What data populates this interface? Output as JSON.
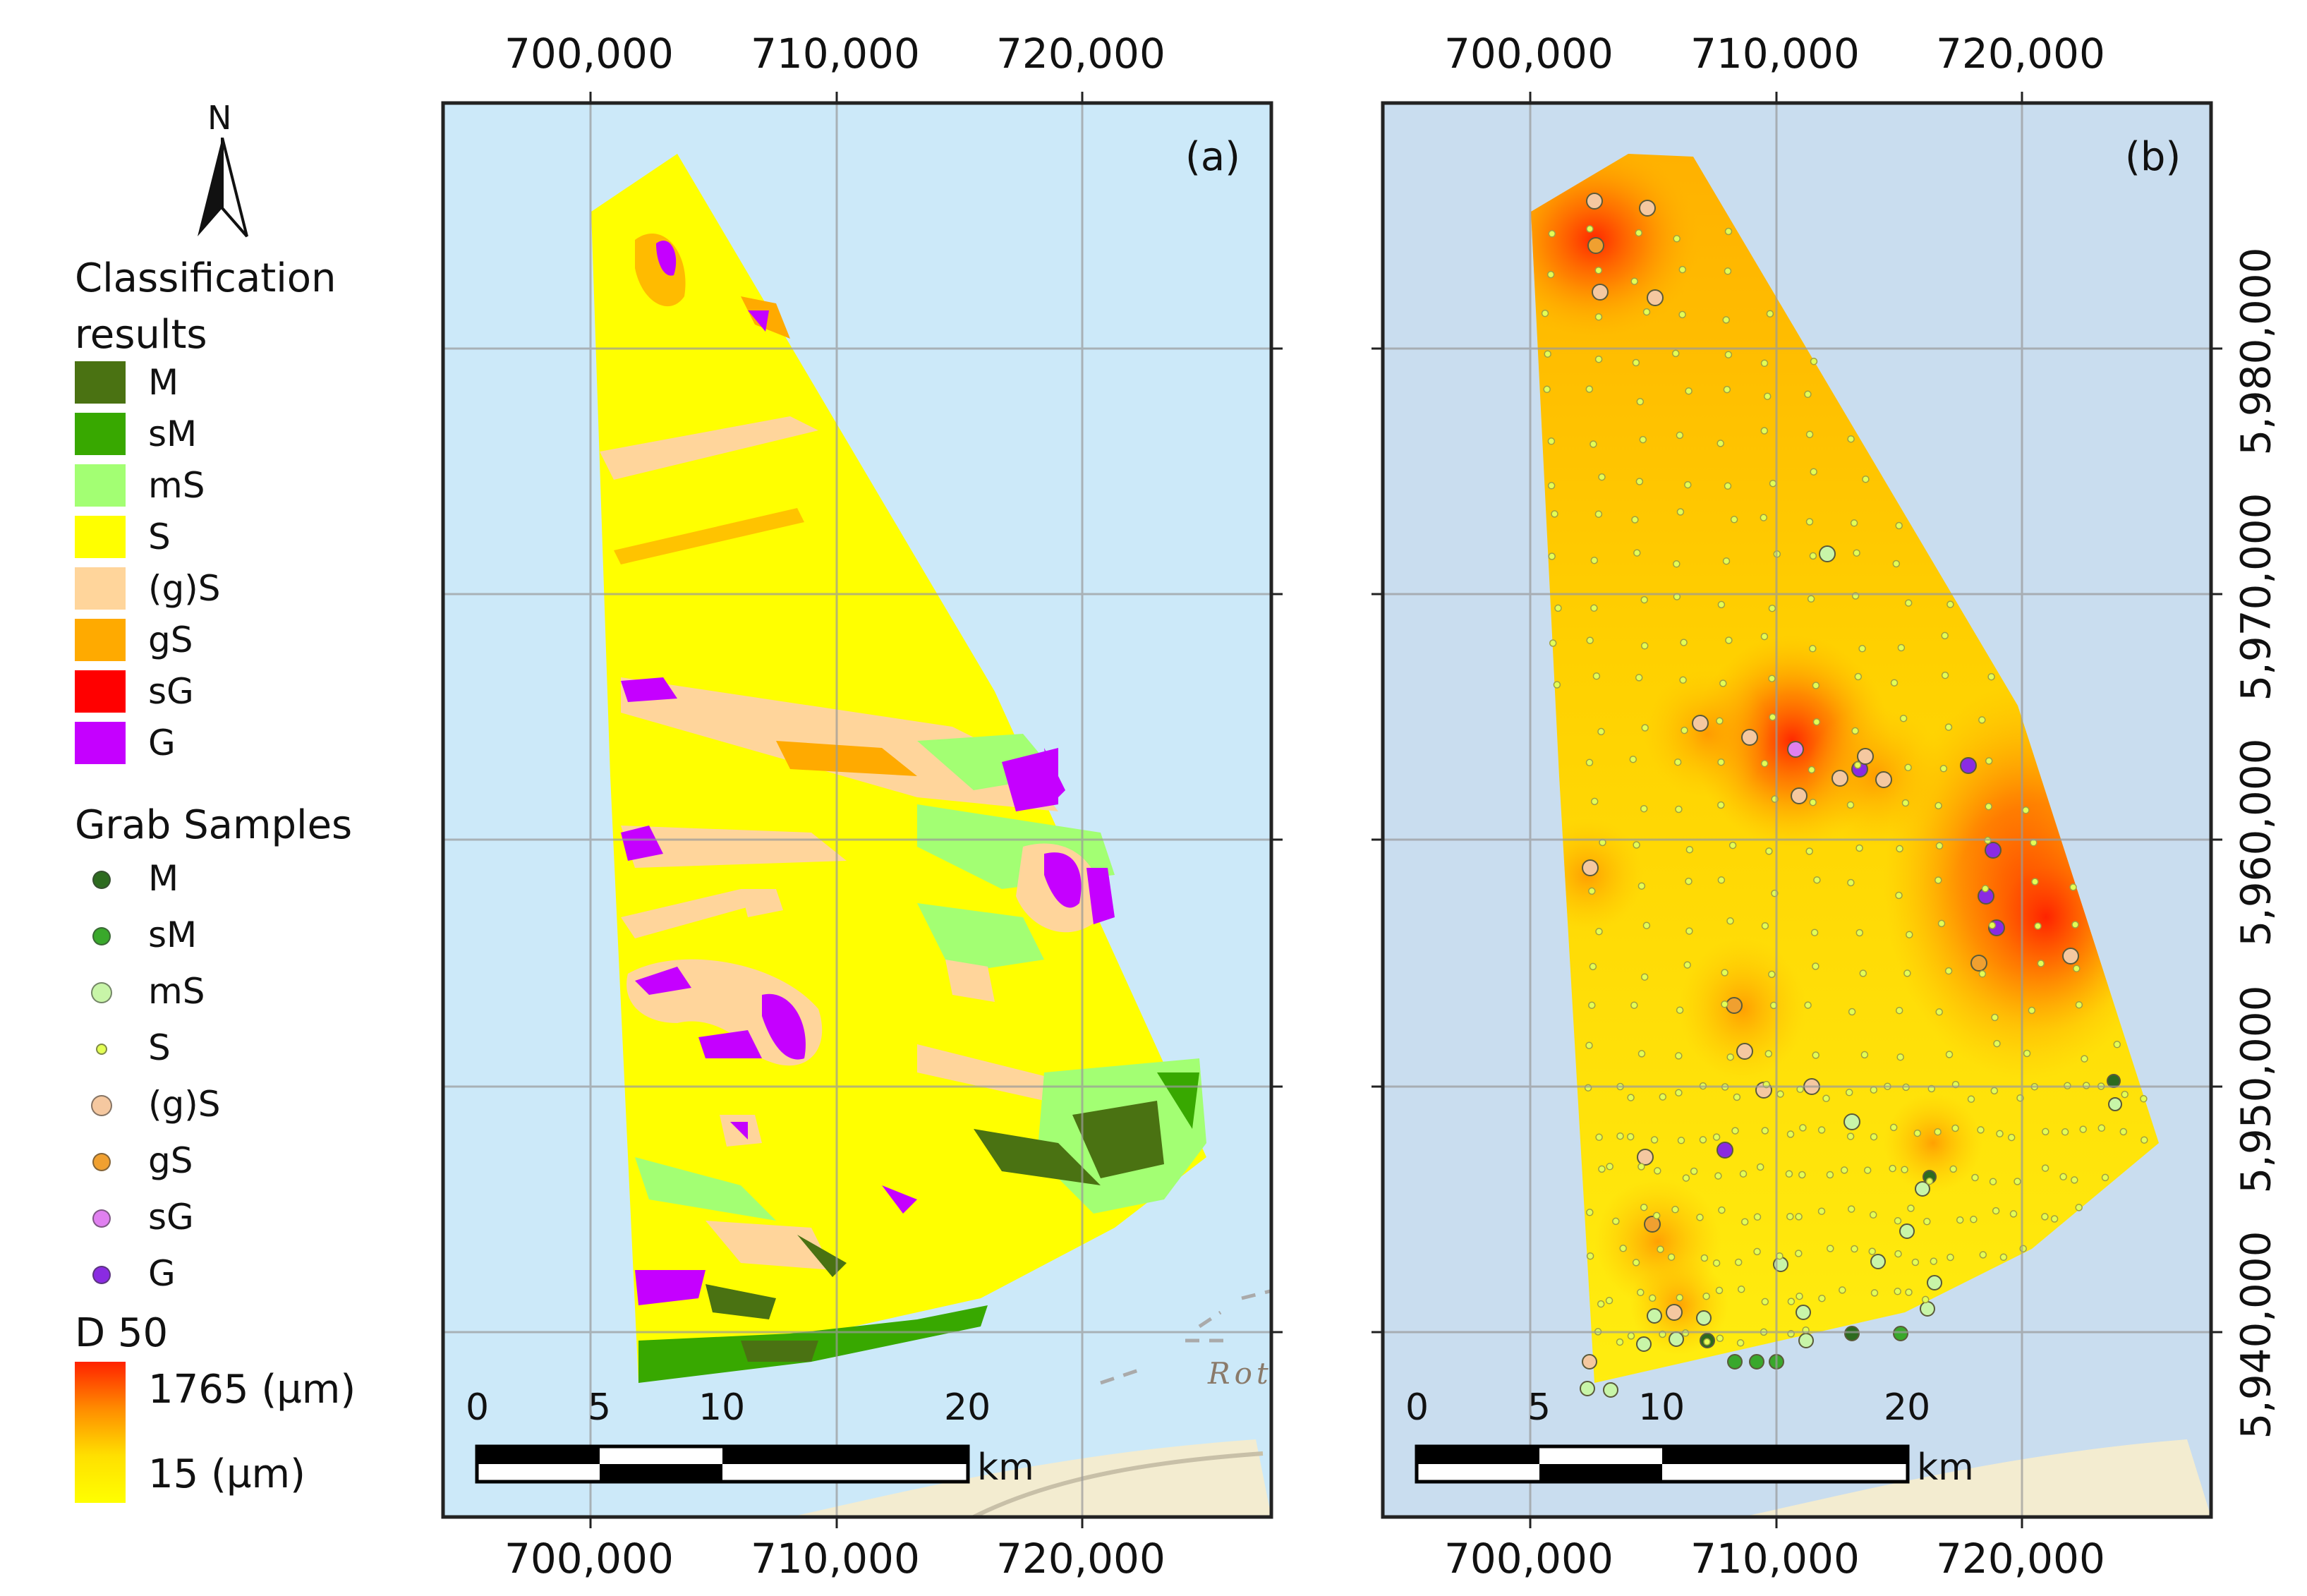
{
  "legend": {
    "north_label": "N",
    "classification_title": "Classification results",
    "classes": [
      {
        "code": "M",
        "color": "#4a7212"
      },
      {
        "code": "sM",
        "color": "#38a800"
      },
      {
        "code": "mS",
        "color": "#a3ff73"
      },
      {
        "code": "S",
        "color": "#ffff00"
      },
      {
        "code": "(g)S",
        "color": "#ffd59b"
      },
      {
        "code": "gS",
        "color": "#ffaa00"
      },
      {
        "code": "sG",
        "color": "#ff0000"
      },
      {
        "code": "G",
        "color": "#c500ff"
      }
    ],
    "grab_title": "Grab Samples",
    "grab_classes": [
      {
        "code": "M",
        "color": "#2d6b1f"
      },
      {
        "code": "sM",
        "color": "#39a82b"
      },
      {
        "code": "mS",
        "color": "#c8f5a8"
      },
      {
        "code": "S",
        "color": "#e3ff55"
      },
      {
        "code": "(g)S",
        "color": "#f5c8a0"
      },
      {
        "code": "gS",
        "color": "#f0a030"
      },
      {
        "code": "sG",
        "color": "#e080f0"
      },
      {
        "code": "G",
        "color": "#8a2be2"
      }
    ],
    "d50_title": "D 50",
    "d50_max": "1765 (µm)",
    "d50_min": "15 (µm)"
  },
  "axes": {
    "x_ticks": [
      "700,000",
      "710,000",
      "720,000"
    ],
    "y_ticks": [
      "5,940,000",
      "5,950,000",
      "5,960,000",
      "5,970,000",
      "5,980,000"
    ]
  },
  "panels": [
    {
      "letter": "(a)",
      "basemap_label": "Rot"
    },
    {
      "letter": "(b)"
    }
  ],
  "scale_bar": {
    "labels": [
      "0",
      "5",
      "10",
      "20"
    ],
    "unit": "km"
  },
  "colors": {
    "sea_a": "#cce9f9",
    "sea_b": "#c9ddef",
    "land": "#f3ecd0"
  }
}
